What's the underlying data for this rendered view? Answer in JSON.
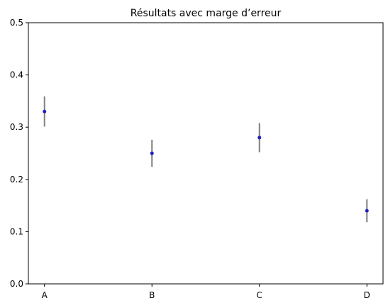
{
  "chart_data": {
    "type": "scatter",
    "title": "Résultats avec marge d’erreur",
    "xlabel": "",
    "ylabel": "",
    "categories": [
      "A",
      "B",
      "C",
      "D"
    ],
    "values": [
      0.33,
      0.25,
      0.28,
      0.14
    ],
    "errors": [
      0.029,
      0.026,
      0.028,
      0.022
    ],
    "ylim": [
      0,
      0.5
    ],
    "yticks": [
      0.0,
      0.1,
      0.2,
      0.3,
      0.4,
      0.5
    ],
    "ytick_labels": [
      "0.0",
      "0.1",
      "0.2",
      "0.3",
      "0.4",
      "0.5"
    ],
    "grid": false,
    "marker_color": "#1f1fbf",
    "error_color": "#808080"
  }
}
